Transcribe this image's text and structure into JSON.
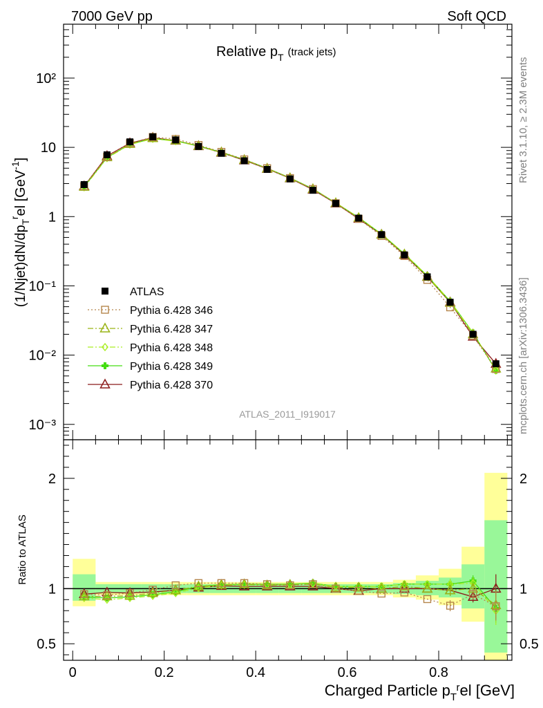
{
  "header": {
    "left": "7000 GeV pp",
    "right": "Soft QCD"
  },
  "side_labels": {
    "rivet": "Rivet 3.1.10, ≥ 2.3M events",
    "mcplots": "mcplots.cern.ch [arXiv:1306.3436]"
  },
  "colors": {
    "ATLAS": "#000000",
    "p346": "#b5854b",
    "p347": "#99b315",
    "p348": "#aaee22",
    "p349": "#44dd11",
    "p370": "#8b1a1a",
    "band_inner": "#99f799",
    "band_outer": "#ffff99"
  },
  "chart_data": [
    {
      "type": "line",
      "title": "Relative p_T (track jets)",
      "title_main": "Relative p",
      "title_sub": "T",
      "title_extra": "(track jets)",
      "ylabel": "(1/Njet)dN/dp_T^rel [GeV^-1]",
      "yscale": "log",
      "ylim": [
        0.0006,
        600
      ],
      "xlim": [
        -0.02,
        0.96
      ],
      "y_tick_labels": [
        "10⁻³",
        "10⁻²",
        "10⁻¹",
        "1",
        "10",
        "10²"
      ],
      "watermark": "ATLAS_2011_I919017",
      "legend_position": "middle-left",
      "x": [
        0.025,
        0.075,
        0.125,
        0.175,
        0.225,
        0.275,
        0.325,
        0.375,
        0.425,
        0.475,
        0.525,
        0.575,
        0.625,
        0.675,
        0.725,
        0.775,
        0.825,
        0.875,
        0.925
      ],
      "series": [
        {
          "name": "ATLAS",
          "marker": "square-filled",
          "values": [
            2.9,
            7.8,
            12.0,
            14.2,
            12.8,
            10.3,
            8.2,
            6.4,
            4.8,
            3.5,
            2.4,
            1.55,
            0.95,
            0.55,
            0.28,
            0.135,
            0.058,
            0.02,
            0.0075
          ]
        },
        {
          "name": "Pythia 6.428 346",
          "marker": "square-open",
          "style": "dotted",
          "values": [
            2.75,
            7.3,
            11.5,
            14.1,
            13.2,
            10.8,
            8.6,
            6.7,
            5.0,
            3.6,
            2.5,
            1.56,
            0.93,
            0.525,
            0.27,
            0.122,
            0.049,
            0.019,
            0.0063
          ]
        },
        {
          "name": "Pythia 6.428 347",
          "marker": "triangle-open",
          "style": "dashdot",
          "values": [
            2.7,
            7.2,
            11.2,
            13.6,
            12.6,
            10.5,
            8.5,
            6.6,
            4.95,
            3.6,
            2.5,
            1.57,
            0.96,
            0.55,
            0.285,
            0.135,
            0.057,
            0.02,
            0.0064
          ]
        },
        {
          "name": "Pythia 6.428 348",
          "marker": "diamond-open",
          "style": "dashdot",
          "values": [
            2.65,
            7.0,
            11.0,
            13.3,
            12.3,
            10.4,
            8.4,
            6.6,
            4.95,
            3.6,
            2.5,
            1.58,
            0.97,
            0.56,
            0.29,
            0.14,
            0.06,
            0.021,
            0.006
          ]
        },
        {
          "name": "Pythia 6.428 349",
          "marker": "cross-filled",
          "style": "solid",
          "values": [
            2.7,
            7.1,
            11.1,
            13.4,
            12.4,
            10.5,
            8.5,
            6.65,
            5.0,
            3.63,
            2.52,
            1.58,
            0.97,
            0.56,
            0.29,
            0.14,
            0.06,
            0.021,
            0.006
          ]
        },
        {
          "name": "Pythia 6.428 370",
          "marker": "triangle-open",
          "style": "solid",
          "values": [
            2.75,
            7.5,
            11.5,
            13.8,
            12.5,
            10.4,
            8.4,
            6.5,
            4.9,
            3.57,
            2.45,
            1.55,
            0.93,
            0.55,
            0.28,
            0.135,
            0.058,
            0.0185,
            0.0075
          ]
        }
      ]
    },
    {
      "type": "line",
      "ylabel": "Ratio to ATLAS",
      "xlabel": "Charged Particle p_T^rel [GeV]",
      "xlabel_pre": "Charged Particle p",
      "xlabel_sub": "T",
      "xlabel_sup": "rel [GeV]",
      "ylim": [
        0.35,
        2.35
      ],
      "xlim": [
        -0.02,
        0.96
      ],
      "x_tick_labels": [
        "0",
        "0.2",
        "0.4",
        "0.6",
        "0.8"
      ],
      "y_tick_labels": [
        "0.5",
        "1",
        "2"
      ],
      "band_inner": [
        [
          0.89,
          1.13
        ],
        [
          0.96,
          1.04
        ],
        [
          0.96,
          1.04
        ],
        [
          0.96,
          1.04
        ],
        [
          0.96,
          1.04
        ],
        [
          0.96,
          1.04
        ],
        [
          0.96,
          1.04
        ],
        [
          0.96,
          1.04
        ],
        [
          0.96,
          1.04
        ],
        [
          0.96,
          1.04
        ],
        [
          0.96,
          1.04
        ],
        [
          0.96,
          1.04
        ],
        [
          0.96,
          1.04
        ],
        [
          0.96,
          1.04
        ],
        [
          0.95,
          1.05
        ],
        [
          0.94,
          1.07
        ],
        [
          0.92,
          1.1
        ],
        [
          0.82,
          1.22
        ],
        [
          0.42,
          1.62
        ]
      ],
      "band_outer": [
        [
          0.84,
          1.27
        ],
        [
          0.94,
          1.06
        ],
        [
          0.94,
          1.06
        ],
        [
          0.94,
          1.06
        ],
        [
          0.94,
          1.06
        ],
        [
          0.94,
          1.06
        ],
        [
          0.94,
          1.06
        ],
        [
          0.94,
          1.06
        ],
        [
          0.94,
          1.06
        ],
        [
          0.94,
          1.06
        ],
        [
          0.94,
          1.06
        ],
        [
          0.94,
          1.06
        ],
        [
          0.94,
          1.06
        ],
        [
          0.94,
          1.06
        ],
        [
          0.92,
          1.08
        ],
        [
          0.9,
          1.12
        ],
        [
          0.85,
          1.18
        ],
        [
          0.7,
          1.38
        ],
        [
          0.35,
          2.05
        ]
      ],
      "series": [
        {
          "name": "Pythia 6.428 346",
          "values": [
            0.95,
            0.94,
            0.96,
            0.99,
            1.03,
            1.05,
            1.05,
            1.05,
            1.04,
            1.03,
            1.04,
            1.0,
            0.98,
            0.955,
            0.965,
            0.905,
            0.845,
            0.95,
            0.84
          ]
        },
        {
          "name": "Pythia 6.428 347",
          "values": [
            0.93,
            0.93,
            0.935,
            0.96,
            0.985,
            1.02,
            1.035,
            1.04,
            1.03,
            1.035,
            1.04,
            1.01,
            1.01,
            1.0,
            1.02,
            1.0,
            0.985,
            1.0,
            0.85
          ]
        },
        {
          "name": "Pythia 6.428 348",
          "values": [
            0.915,
            0.9,
            0.915,
            0.935,
            0.96,
            1.005,
            1.03,
            1.035,
            1.035,
            1.035,
            1.045,
            1.02,
            1.02,
            1.02,
            1.04,
            1.04,
            1.04,
            1.05,
            0.8
          ]
        },
        {
          "name": "Pythia 6.428 349",
          "values": [
            0.925,
            0.915,
            0.925,
            0.945,
            0.97,
            1.02,
            1.035,
            1.04,
            1.04,
            1.04,
            1.05,
            1.02,
            1.02,
            1.02,
            1.04,
            1.04,
            1.04,
            1.07,
            0.82
          ]
        },
        {
          "name": "Pythia 6.428 370",
          "values": [
            0.95,
            0.965,
            0.96,
            0.97,
            0.985,
            1.01,
            1.025,
            1.02,
            1.02,
            1.02,
            1.02,
            1.0,
            0.98,
            1.0,
            1.0,
            1.0,
            0.985,
            0.925,
            1.0
          ]
        }
      ]
    }
  ]
}
